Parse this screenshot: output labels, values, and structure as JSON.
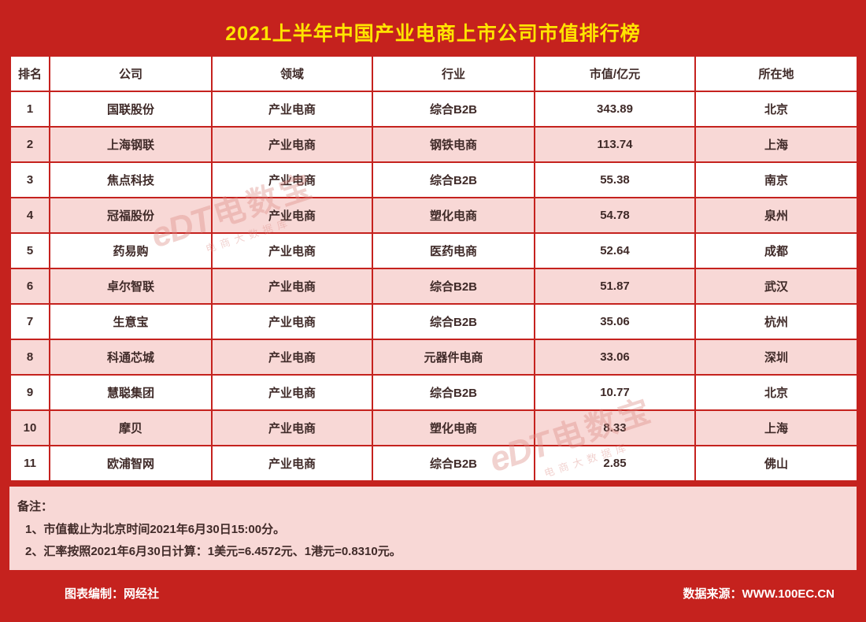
{
  "title": "2021上半年中国产业电商上市公司市值排行榜",
  "chart_data": {
    "type": "table",
    "title": "2021上半年中国产业电商上市公司市值排行榜",
    "columns": [
      "排名",
      "公司",
      "领域",
      "行业",
      "市值/亿元",
      "所在地"
    ],
    "rows": [
      [
        "1",
        "国联股份",
        "产业电商",
        "综合B2B",
        "343.89",
        "北京"
      ],
      [
        "2",
        "上海钢联",
        "产业电商",
        "钢铁电商",
        "113.74",
        "上海"
      ],
      [
        "3",
        "焦点科技",
        "产业电商",
        "综合B2B",
        "55.38",
        "南京"
      ],
      [
        "4",
        "冠福股份",
        "产业电商",
        "塑化电商",
        "54.78",
        "泉州"
      ],
      [
        "5",
        "药易购",
        "产业电商",
        "医药电商",
        "52.64",
        "成都"
      ],
      [
        "6",
        "卓尔智联",
        "产业电商",
        "综合B2B",
        "51.87",
        "武汉"
      ],
      [
        "7",
        "生意宝",
        "产业电商",
        "综合B2B",
        "35.06",
        "杭州"
      ],
      [
        "8",
        "科通芯城",
        "产业电商",
        "元器件电商",
        "33.06",
        "深圳"
      ],
      [
        "9",
        "慧聪集团",
        "产业电商",
        "综合B2B",
        "10.77",
        "北京"
      ],
      [
        "10",
        "摩贝",
        "产业电商",
        "塑化电商",
        "8.33",
        "上海"
      ],
      [
        "11",
        "欧浦智网",
        "产业电商",
        "综合B2B",
        "2.85",
        "佛山"
      ]
    ]
  },
  "notes": {
    "label": "备注：",
    "items": [
      "1、市值截止为北京时间2021年6月30日15:00分。",
      "2、汇率按照2021年6月30日计算：1美元=6.4572元、1港元=0.8310元。"
    ]
  },
  "footer": {
    "left": "图表编制：网经社",
    "right": "数据来源：WWW.100EC.CN"
  },
  "watermark": {
    "logo": "eDT",
    "name": "电数宝",
    "subtitle": "电商大数据库"
  },
  "colors": {
    "background_red": "#c5221e",
    "title_yellow": "#ffe400",
    "row_pink": "#f8d8d6",
    "text_dark": "#3f2a28",
    "footer_white": "#ffffff"
  }
}
